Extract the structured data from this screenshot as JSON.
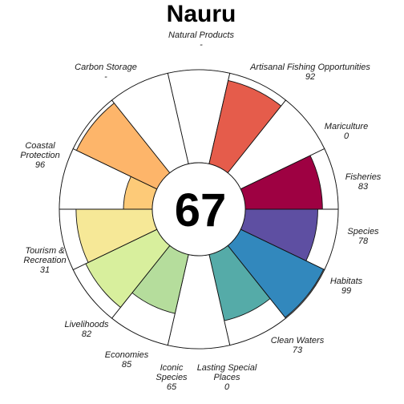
{
  "chart_data": {
    "type": "flower",
    "title": "Nauru",
    "center_score": "67",
    "scale": [
      0,
      100
    ],
    "petals": [
      {
        "key": "np",
        "label_lines": [
          "Natural Products"
        ],
        "value_text": "-",
        "value": null,
        "color": "#ffffff"
      },
      {
        "key": "ao",
        "label_lines": [
          "Artisanal Fishing Opportunities"
        ],
        "value_text": "92",
        "value": 92,
        "color": "#e55c4b"
      },
      {
        "key": "mar",
        "label_lines": [
          "Mariculture"
        ],
        "value_text": "0",
        "value": 0,
        "color": "#ffffff"
      },
      {
        "key": "fis",
        "label_lines": [
          "Fisheries"
        ],
        "value_text": "83",
        "value": 83,
        "color": "#9e0142"
      },
      {
        "key": "spp",
        "label_lines": [
          "Species"
        ],
        "value_text": "78",
        "value": 78,
        "color": "#5e4fa2"
      },
      {
        "key": "hab",
        "label_lines": [
          "Habitats"
        ],
        "value_text": "99",
        "value": 99,
        "color": "#3288bd"
      },
      {
        "key": "cw",
        "label_lines": [
          "Clean Waters"
        ],
        "value_text": "73",
        "value": 73,
        "color": "#55aba8"
      },
      {
        "key": "lsp",
        "label_lines": [
          "Lasting Special",
          "Places"
        ],
        "value_text": "0",
        "value": 0,
        "color": "#ffffff"
      },
      {
        "key": "ico",
        "label_lines": [
          "Iconic",
          "Species"
        ],
        "value_text": "65",
        "value": 65,
        "color": "#b5dd9c"
      },
      {
        "key": "eco",
        "label_lines": [
          "Economies"
        ],
        "value_text": "85",
        "value": 85,
        "color": "#d8ef9d"
      },
      {
        "key": "liv",
        "label_lines": [
          "Livelihoods"
        ],
        "value_text": "82",
        "value": 82,
        "color": "#f6e897"
      },
      {
        "key": "tr",
        "label_lines": [
          "Tourism &",
          "Recreation"
        ],
        "value_text": "31",
        "value": 31,
        "color": "#fdca78"
      },
      {
        "key": "cp",
        "label_lines": [
          "Coastal",
          "Protection"
        ],
        "value_text": "96",
        "value": 96,
        "color": "#fdb56a"
      },
      {
        "key": "cs",
        "label_lines": [
          "Carbon Storage"
        ],
        "value_text": "-",
        "value": null,
        "color": "#ffffff"
      }
    ]
  }
}
